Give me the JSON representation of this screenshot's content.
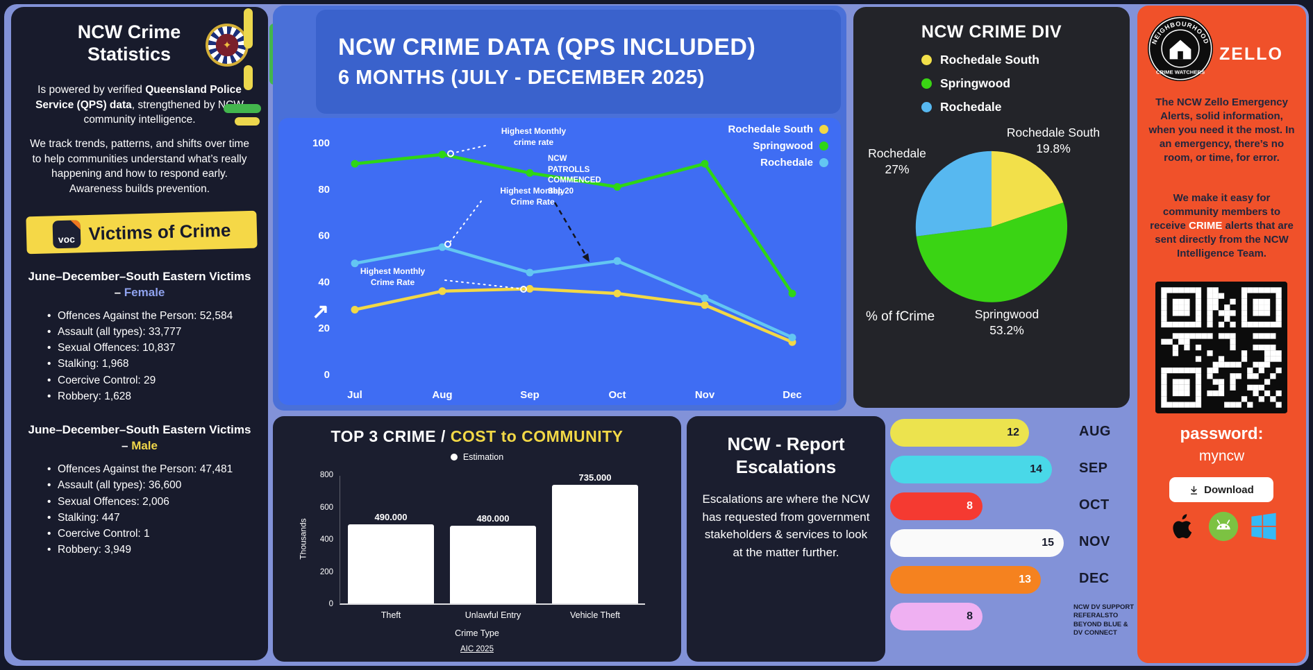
{
  "app": {
    "title": "NCW Crime Statistics Infographic"
  },
  "colors": {
    "background": "#8292d8",
    "dark_panel": "#1a1d2e",
    "container_blue": "#4a70d8",
    "header_blue": "#3a62cc",
    "chart_blue": "#3f6df3",
    "pie_panel_dark": "#232429",
    "zello_orange": "#f0512a",
    "accent_yellow": "#f2d846"
  },
  "left_panel": {
    "title": "NCW Crime Statistics",
    "intro1_pre": "Is powered by verified ",
    "intro1_bold": "Queensland Police Service (QPS) data",
    "intro1_post": ", strengthened by NCW community intelligence.",
    "intro2": "We track trends, patterns, and shifts over time to help communities understand what’s really happening and how to respond early. Awareness builds prevention.",
    "voc_icon_text": "voc",
    "voc_title": "Victims of Crime",
    "female_section": {
      "heading_pre": "June–December–South Eastern Victims – ",
      "heading_highlight": "Female",
      "items": [
        "Offences Against the Person: 52,584",
        "Assault (all types): 33,777",
        "Sexual Offences: 10,837",
        "Stalking: 1,968",
        "Coercive Control: 29",
        "Robbery: 1,628"
      ]
    },
    "male_section": {
      "heading_pre": "June–December–South Eastern Victims – ",
      "heading_highlight": "Male",
      "items": [
        "Offences Against the Person: 47,481",
        "Assault (all types): 36,600",
        "Sexual Offences: 2,006",
        "Stalking: 447",
        "Coercive Control: 1",
        "Robbery: 3,949"
      ]
    }
  },
  "header": {
    "line1": "NCW CRIME DATA (QPS INCLUDED)",
    "line2": "6 MONTHS (JULY - DECEMBER 2025)"
  },
  "escalations_panel": {
    "title": "NCW - Report Escalations",
    "body": "Escalations are where the NCW has requested from government stakeholders & services to look at the matter further."
  },
  "zello_panel": {
    "badge_top_text": "NEIGHBOURHOOD",
    "badge_bottom_text": "CRIME WATCHERS",
    "logo_text": "ZELLO",
    "para1": "The NCW Zello Emergency Alerts, solid information, when you need it the most. In an emergency, there’s no room, or time, for error.",
    "para2_pre": "We make it easy for community members to receive ",
    "para2_highlight": "CRIME",
    "para2_post": " alerts that are sent directly from the NCW Intelligence Team.",
    "password_label": "password:",
    "password_value": "myncw",
    "download_label": "Download"
  },
  "chart_data": [
    {
      "id": "monthly-crime-lines",
      "type": "line",
      "title": "",
      "x": [
        "Jul",
        "Aug",
        "Sep",
        "Oct",
        "Nov",
        "Dec"
      ],
      "ylim": [
        0,
        100
      ],
      "yticks": [
        0,
        20,
        40,
        60,
        80,
        100
      ],
      "grid": false,
      "legend_position": "top-right",
      "series": [
        {
          "name": "Rochedale South",
          "color": "#f2d846",
          "values": [
            28,
            36,
            37,
            35,
            30,
            14
          ]
        },
        {
          "name": "Springwood",
          "color": "#2ed615",
          "values": [
            91,
            95,
            87,
            81,
            91,
            35
          ]
        },
        {
          "name": "Rochedale",
          "color": "#63c6f2",
          "values": [
            48,
            55,
            44,
            49,
            33,
            16
          ]
        }
      ],
      "annotations": [
        {
          "id": "springwood-peak",
          "text": "Highest Monthly\ncrime rate"
        },
        {
          "id": "rochedale-peak",
          "text": "Highest Monthly\nCrime Rate"
        },
        {
          "id": "rochedale-south-peak",
          "text": "Highest Monthly\nCrime Rate"
        },
        {
          "id": "patrols",
          "text": "NCW\nPATROLLS\nCOMMENCED\nSep 20"
        }
      ]
    },
    {
      "id": "crime-div-pie",
      "type": "pie",
      "title": "NCW CRIME DIV",
      "footnote": "% of fCrime",
      "slices": [
        {
          "label": "Rochedale South",
          "value": 19.8,
          "pct": "19.8%",
          "color": "#f2e04a"
        },
        {
          "label": "Springwood",
          "value": 53.2,
          "pct": "53.2%",
          "color": "#3ad414"
        },
        {
          "label": "Rochedale",
          "value": 27,
          "pct": "27%",
          "color": "#57b8f0"
        }
      ]
    },
    {
      "id": "cost-bars",
      "type": "bar",
      "title_white": "TOP 3 CRIME /",
      "title_yellow": "COST to COMMUNITY",
      "legend": "Estimation",
      "categories": [
        "Theft",
        "Unlawful Entry",
        "Vehicle Theft"
      ],
      "values": [
        490,
        480,
        735
      ],
      "value_labels": [
        "490.000",
        "480.000",
        "735.000"
      ],
      "ylim": [
        0,
        800
      ],
      "yticks": [
        0,
        200,
        400,
        600,
        800
      ],
      "ylabel": "Thousands",
      "xlabel": "Crime Type",
      "source": "AIC 2025",
      "bar_color": "#ffffff"
    },
    {
      "id": "escalations-hbar",
      "type": "hbar",
      "max": 15,
      "rows": [
        {
          "month": "AUG",
          "value": 12,
          "color": "#ece34e",
          "text_color": "#1a1d2e"
        },
        {
          "month": "SEP",
          "value": 14,
          "color": "#49d8e8",
          "text_color": "#1a1d2e"
        },
        {
          "month": "OCT",
          "value": 8,
          "color": "#f53a31",
          "text_color": "#ffffff"
        },
        {
          "month": "NOV",
          "value": 15,
          "color": "#fafafa",
          "text_color": "#1a1d2e"
        },
        {
          "month": "DEC",
          "value": 13,
          "color": "#f5821f",
          "text_color": "#ffffff"
        },
        {
          "month": "",
          "value": 8,
          "color": "#efb0f2",
          "text_color": "#1a1d2e",
          "note": "NCW DV SUPPORT REFERALSTO BEYOND BLUE & DV CONNECT"
        }
      ]
    }
  ]
}
